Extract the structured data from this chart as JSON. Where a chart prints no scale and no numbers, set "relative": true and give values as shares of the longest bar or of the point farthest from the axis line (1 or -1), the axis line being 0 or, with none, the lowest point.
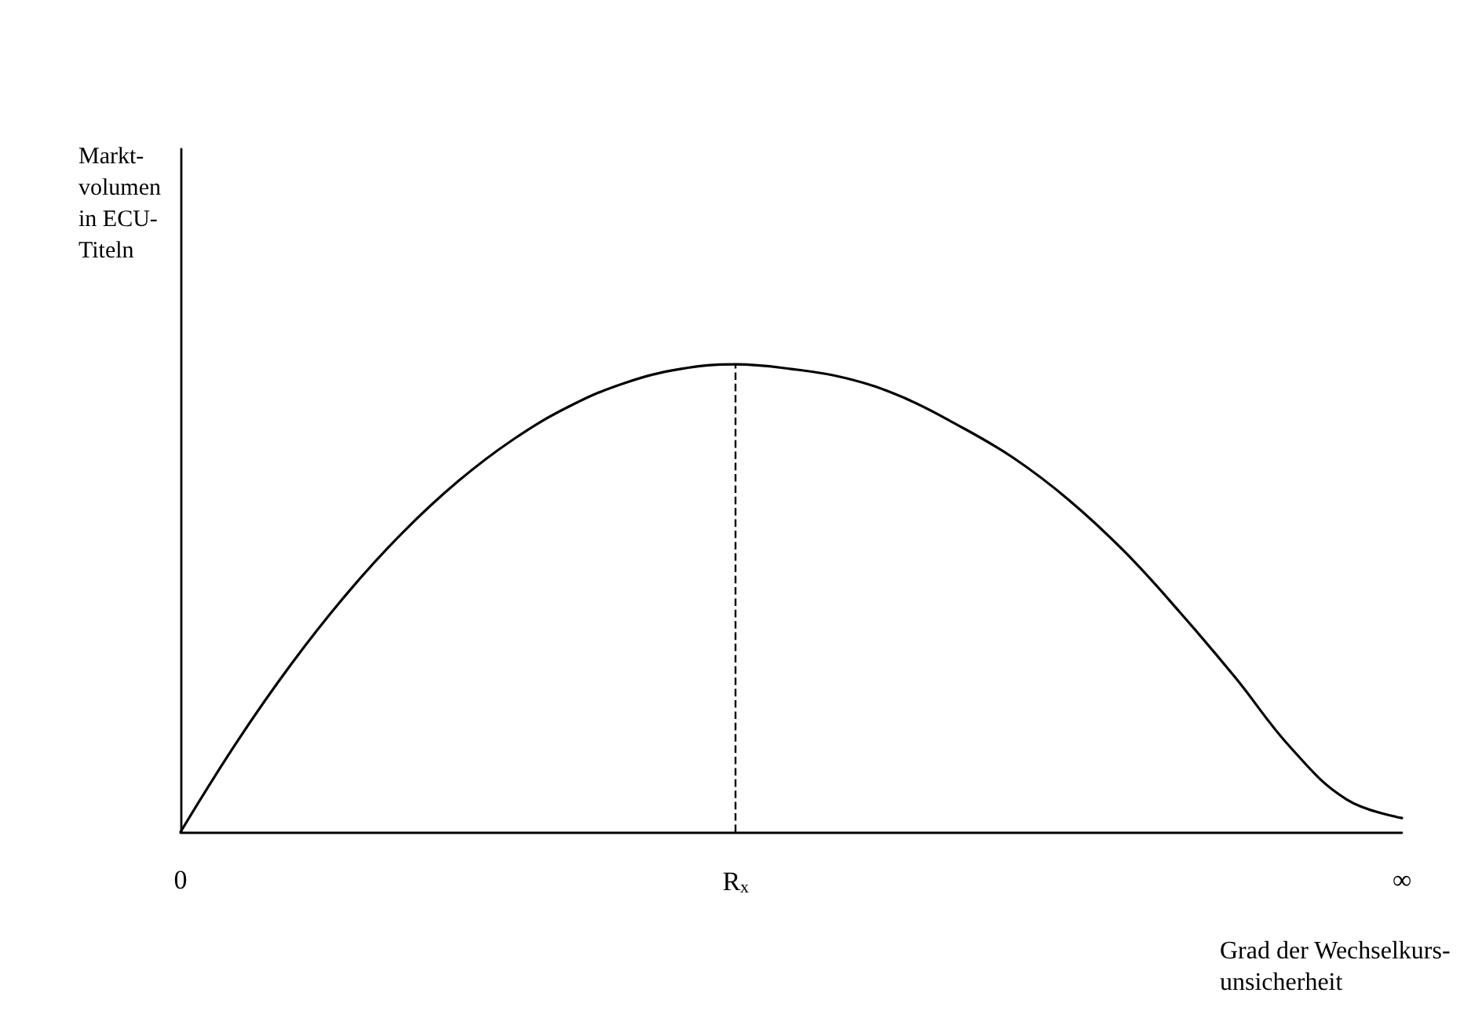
{
  "chart_data": {
    "type": "line",
    "relative": true,
    "ylabel": "Markt-\nvolumen\nin ECU-\nTiteln",
    "xlabel": "Grad der Wechselkurs-\nunsicherheit",
    "categories": [
      "0",
      null,
      null,
      null,
      null,
      null,
      null,
      null,
      null,
      null,
      "R$_{x}$",
      null,
      null,
      null,
      null,
      null,
      null,
      null,
      null,
      null,
      null,
      null,
      "∞"
    ],
    "series": [
      {
        "color": "#000000",
        "values": [
          0,
          0.19,
          0.36,
          0.51,
          0.64,
          0.75,
          0.84,
          0.91,
          0.96,
          0.99,
          1,
          0.99,
          0.97,
          0.93,
          0.87,
          0.8,
          0.71,
          0.6,
          0.47,
          0.33,
          0.18,
          0.07,
          0.03
        ]
      }
    ],
    "ref_lines": [
      {
        "axis": "x",
        "value": "R$_{x}$",
        "line_style": "dashed",
        "color": "#000000"
      }
    ],
    "marker": "none",
    "line_style": "solid",
    "grid": false
  }
}
